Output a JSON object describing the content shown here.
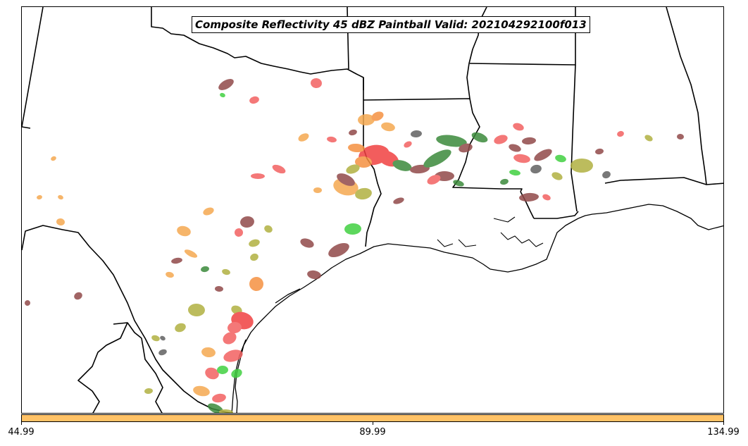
{
  "title": "Composite Reflectivity 45 dBZ Paintball Valid: 202104292100f013",
  "colorbar": {
    "color": "#ffc266",
    "tick_labels": [
      "44.99",
      "89.99",
      "134.99"
    ],
    "values": [
      44.99,
      89.99,
      134.99
    ]
  },
  "colors": {
    "red": "#f04040",
    "salmon": "#f26060",
    "orange": "#f59040",
    "light_orange": "#f5a850",
    "olive": "#b0b040",
    "green": "#40d040",
    "dark_green": "#3a8a3a",
    "brown": "#904848",
    "gray": "#606060",
    "boundary": "#000000"
  }
}
